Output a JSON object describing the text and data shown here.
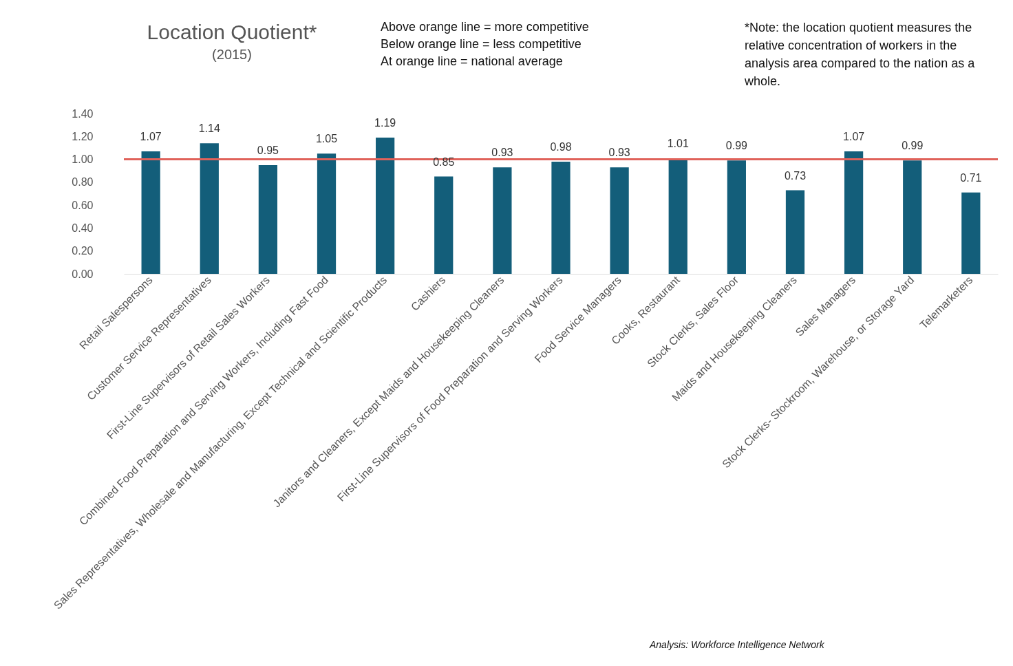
{
  "chart_data": {
    "type": "bar",
    "title": "Location Quotient*",
    "subtitle": "(2015)",
    "categories": [
      "Retail Salespersons",
      "Customer Service Representatives",
      "First-Line Supervisors of Retail Sales Workers",
      "Combined Food Preparation and Serving Workers, Including Fast Food",
      "Sales Representatives, Wholesale and Manufacturing, Except Technical and Scientific Products",
      "Cashiers",
      "Janitors and Cleaners, Except Maids and Housekeeping Cleaners",
      "First-Line Supervisors of Food Preparation and Serving Workers",
      "Food Service Managers",
      "Cooks, Restaurant",
      "Stock Clerks, Sales Floor",
      "Maids and Housekeeping Cleaners",
      "Sales Managers",
      "Stock Clerks- Stockroom, Warehouse, or Storage Yard",
      "Telemarketers"
    ],
    "values": [
      1.07,
      1.14,
      0.95,
      1.05,
      1.19,
      0.85,
      0.93,
      0.98,
      0.93,
      1.01,
      0.99,
      0.73,
      1.07,
      0.99,
      0.71
    ],
    "color": "#135e7a",
    "data_labels": true,
    "grid": false,
    "ylim": [
      0,
      1.4
    ],
    "yticks": [
      {
        "value": 0,
        "label": "0.00"
      },
      {
        "value": 0.2,
        "label": "0.20"
      },
      {
        "value": 0.4,
        "label": "0.40"
      },
      {
        "value": 0.6,
        "label": "0.60"
      },
      {
        "value": 0.8,
        "label": "0.80"
      },
      {
        "value": 1,
        "label": "1.00"
      },
      {
        "value": 1.2,
        "label": "1.20"
      },
      {
        "value": 1.4,
        "label": "1.40"
      }
    ],
    "ref_lines": [
      {
        "axis": "y",
        "value": 1,
        "color": "#e0625a"
      }
    ],
    "annotations": [
      "Above orange line = more competitive",
      "Below orange line = less competitive",
      "At orange line = national average",
      "*Note: the location quotient measures the relative concentration of workers in the analysis area compared to the nation as a whole.",
      "Analysis: Workforce Intelligence Network"
    ]
  }
}
